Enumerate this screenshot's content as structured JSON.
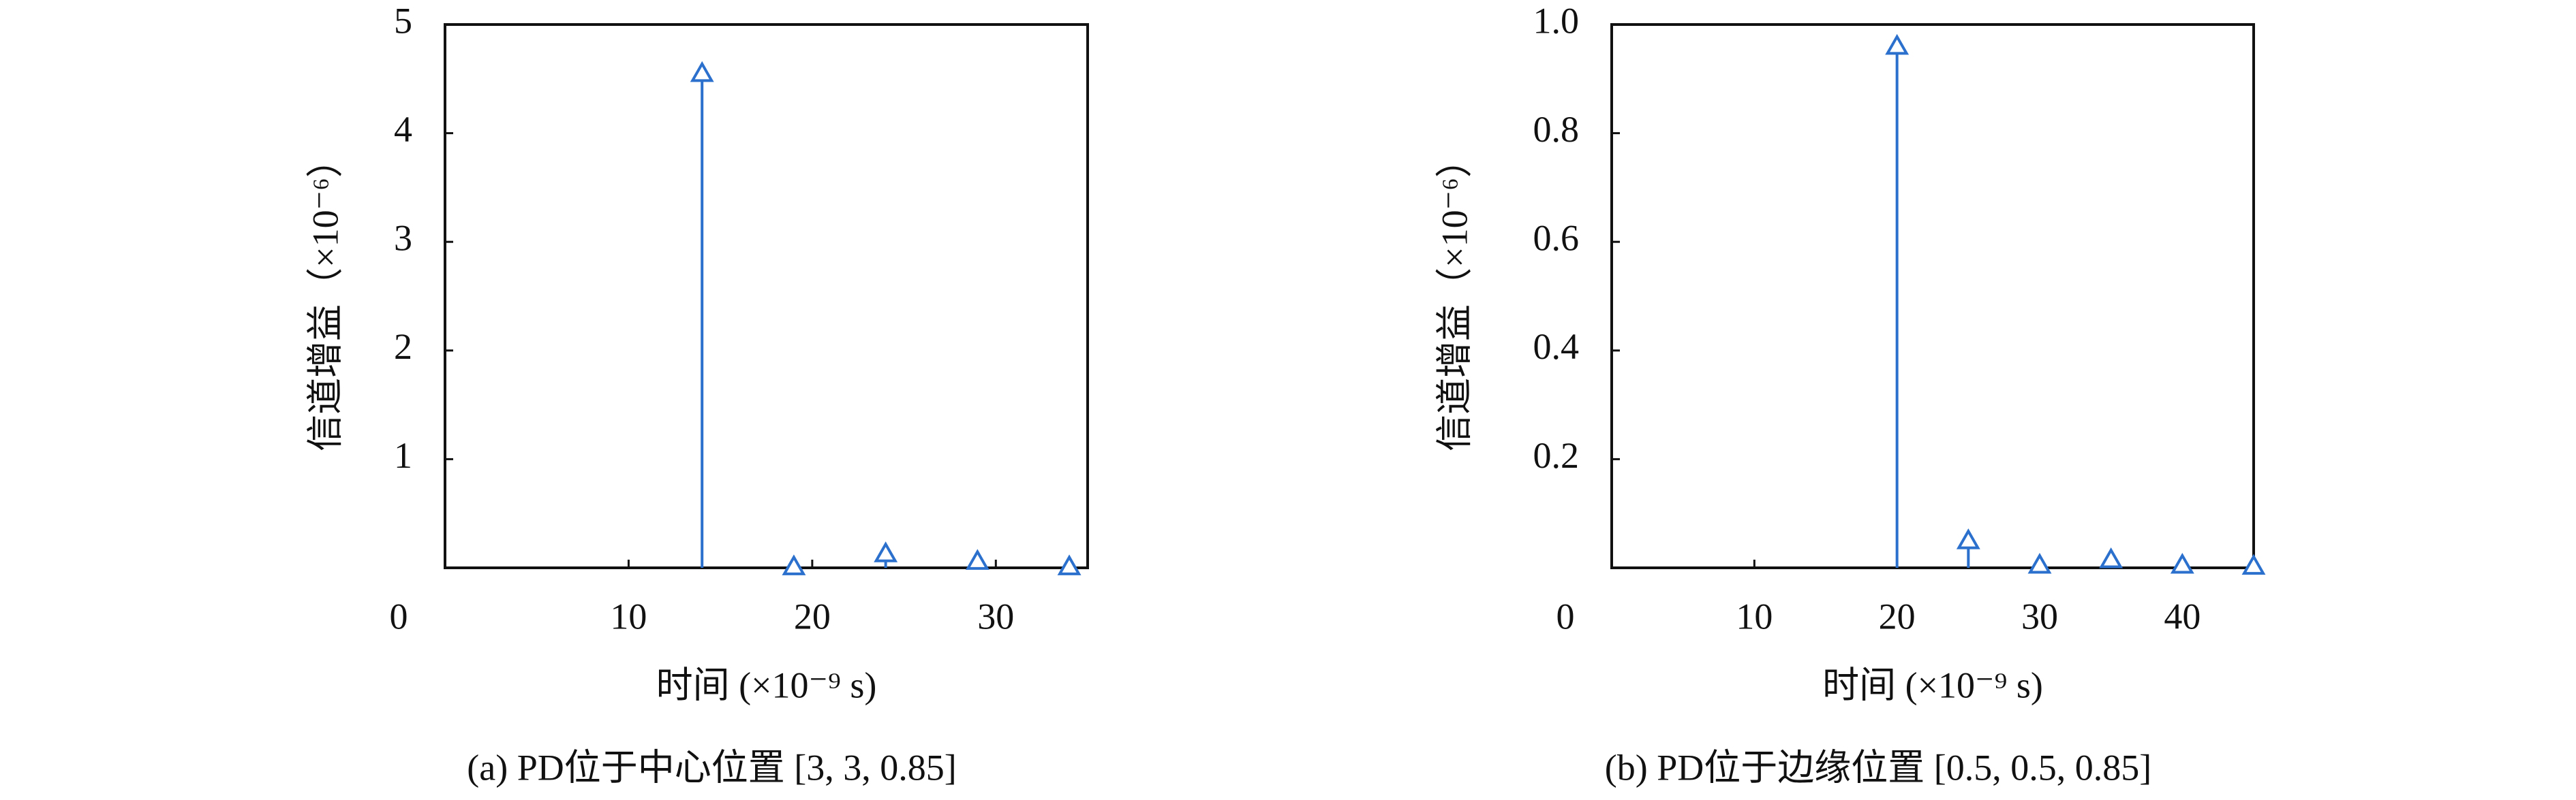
{
  "chart_data": [
    {
      "type": "stem",
      "caption": "(a) PD位于中心位置 [3, 3, 0.85]",
      "xlabel": "时间 (×10⁻⁹ s)",
      "ylabel": "信道增益（×10⁻⁶）",
      "x": [
        14,
        19,
        24,
        29,
        34
      ],
      "values": [
        4.55,
        0.01,
        0.13,
        0.06,
        0.01
      ],
      "color": "#2b70cc",
      "marker": "triangle-open",
      "xlim": [
        0,
        35
      ],
      "xticks": [
        0,
        10,
        20,
        30
      ],
      "ylim": [
        0,
        5
      ],
      "yticks": [
        1,
        2,
        3,
        4,
        5
      ]
    },
    {
      "type": "stem",
      "caption": "(b) PD位于边缘位置 [0.5, 0.5, 0.85]",
      "xlabel": "时间 (×10⁻⁹ s)",
      "ylabel": "信道增益（×10⁻⁶）",
      "x": [
        20,
        25,
        30,
        35,
        40,
        45
      ],
      "values": [
        0.96,
        0.05,
        0.005,
        0.015,
        0.005,
        0.003
      ],
      "color": "#2b70cc",
      "marker": "triangle-open",
      "xlim": [
        0,
        45
      ],
      "xticks": [
        0,
        10,
        20,
        30,
        40
      ],
      "ylim": [
        0,
        1
      ],
      "yticks": [
        {
          "value": 0.2,
          "label": "0.2"
        },
        {
          "value": 0.4,
          "label": "0.4"
        },
        {
          "value": 0.6,
          "label": "0.6"
        },
        {
          "value": 0.8,
          "label": "0.8"
        },
        {
          "value": 1,
          "label": "1.0"
        }
      ]
    }
  ]
}
